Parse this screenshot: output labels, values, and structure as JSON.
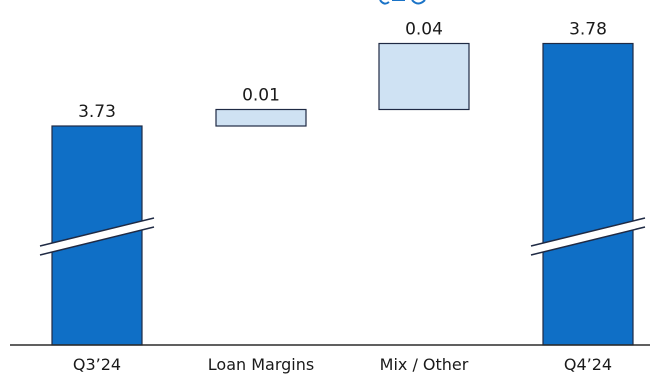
{
  "chart_data": {
    "type": "bar",
    "subtype": "waterfall",
    "axis_break": true,
    "categories": [
      "Q3’24",
      "Loan Margins",
      "Mix / Other",
      "Q4’24"
    ],
    "values": [
      3.73,
      0.01,
      0.04,
      3.78
    ],
    "value_labels": [
      "3.73",
      "0.01",
      "0.04",
      "3.78"
    ],
    "bar_roles": [
      "total",
      "increase",
      "increase",
      "total"
    ],
    "colors": {
      "total": "#0f6fc6",
      "increase": "#cfe2f3",
      "bar_outline": "#1f2a44",
      "axis": "#2b2b2b",
      "text": "#1a1a1a",
      "partial_title": "#1a73c7"
    }
  }
}
